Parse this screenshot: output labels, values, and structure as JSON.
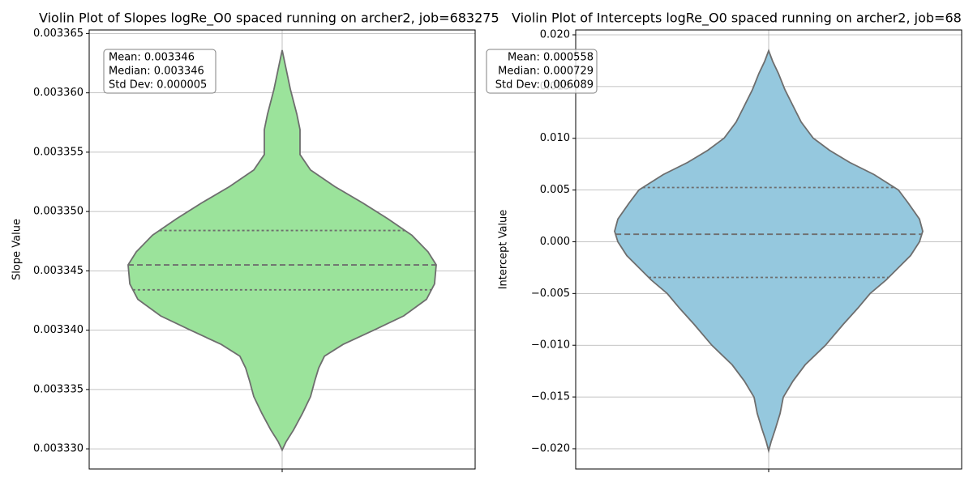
{
  "chart_data": [
    {
      "type": "violin",
      "title": "Violin Plot of Slopes logRe_O0 spaced running on archer2, job=683275",
      "ylabel": "Slope Value",
      "color": "#9be39b",
      "edge_color": "#6e6e6e",
      "ylim": [
        0.0033283,
        0.0033653
      ],
      "yticks": [
        {
          "value": 0.00333,
          "label": "0.003330"
        },
        0.003335,
        {
          "value": 0.00334,
          "label": "0.003340"
        },
        0.003345,
        {
          "value": 0.00335,
          "label": "0.003350"
        },
        0.003355,
        {
          "value": 0.00336,
          "label": "0.003360"
        },
        0.003365
      ],
      "grid": true,
      "kde_values": [
        0.0033299,
        0.0033306,
        0.0033316,
        0.003333,
        0.0033344,
        0.0033357,
        0.0033368,
        0.0033378,
        0.0033388,
        0.00334,
        0.0033412,
        0.0033426,
        0.0033439,
        0.0033455,
        0.0033466,
        0.003348,
        0.0033494,
        0.0033507,
        0.0033521,
        0.0033535,
        0.0033548,
        0.0033559,
        0.0033569,
        0.0033582,
        0.0033603,
        0.0033623,
        0.0033636
      ],
      "kde_density": [
        0,
        0.026,
        0.074,
        0.132,
        0.184,
        0.211,
        0.237,
        0.274,
        0.395,
        0.595,
        0.789,
        0.937,
        0.989,
        1,
        0.947,
        0.842,
        0.684,
        0.526,
        0.342,
        0.184,
        0.116,
        0.116,
        0.116,
        0.095,
        0.053,
        0.021,
        0
      ],
      "quartiles": [
        0.0033434,
        0.0033455,
        0.0033484
      ],
      "stats": [
        "Mean: 0.003346",
        "Median: 0.003346",
        "Std Dev: 0.000005"
      ]
    },
    {
      "type": "violin",
      "title": "Violin Plot of Intercepts logRe_O0 spaced running on archer2, job=68",
      "ylabel": "Intercept Value",
      "color": "#95c8de",
      "edge_color": "#6e6e6e",
      "ylim": [
        -0.02196,
        0.02047
      ],
      "yticks": [
        {
          "value": -0.02,
          "label": "−0.020"
        },
        {
          "value": -0.015,
          "label": "−0.015"
        },
        {
          "value": -0.01,
          "label": "−0.010"
        },
        {
          "value": -0.005,
          "label": "−0.005"
        },
        {
          "value": 0,
          "label": "0.000"
        },
        0.005,
        {
          "value": 0.01,
          "label": "0.010"
        },
        0.015,
        {
          "value": 0.02,
          "label": "0.020"
        }
      ],
      "grid": true,
      "kde_values": [
        -0.020188,
        -0.019327,
        -0.018153,
        -0.016588,
        -0.015023,
        -0.013458,
        -0.011894,
        -0.010016,
        -0.007981,
        -0.006416,
        -0.005008,
        -0.003678,
        -0.002504,
        -0.00133,
        0,
        0.001017,
        0.002191,
        0.003756,
        0.005008,
        0.006494,
        0.007668,
        0.008842,
        0.010016,
        0.01158,
        0.013145,
        0.01471,
        0.016275,
        0.017449,
        0.018466
      ],
      "kde_density": [
        0,
        0.016,
        0.042,
        0.074,
        0.095,
        0.158,
        0.237,
        0.368,
        0.484,
        0.579,
        0.658,
        0.763,
        0.842,
        0.921,
        0.979,
        1,
        0.979,
        0.905,
        0.842,
        0.684,
        0.526,
        0.395,
        0.289,
        0.211,
        0.158,
        0.105,
        0.063,
        0.026,
        0
      ],
      "quartiles": [
        -0.003443,
        0.000729,
        0.005243
      ],
      "stats": [
        "Mean: 0.000558",
        "Median: 0.000729",
        "Std Dev: 0.006089"
      ]
    }
  ]
}
